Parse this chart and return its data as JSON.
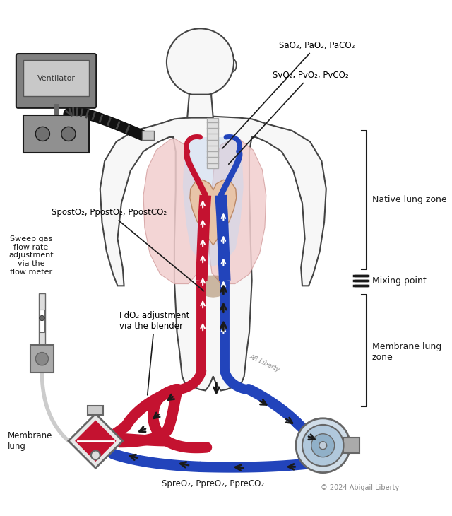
{
  "bg_color": "#ffffff",
  "body_fill": "#f7f7f7",
  "body_edge": "#444444",
  "lung_color": "#f2cece",
  "lung_edge": "#d4a0a0",
  "heart_fill": "#e8c4a8",
  "red_tube": "#c41230",
  "blue_tube": "#2244bb",
  "blue_light": "#a8c4e8",
  "dark": "#1a1a1a",
  "gray_med": "#999999",
  "gray_light": "#bbbbbb",
  "gray_dark": "#666666",
  "white": "#ffffff",
  "label_SaO2": "SaO₂, PaO₂, PaCO₂",
  "label_SvO2": "S̅vO₂, P̅vO₂, P̅vCO₂",
  "label_SpostO2": "SpostO₂, PpostO₂, PpostCO₂",
  "label_sweep": "Sweep gas\nflow rate\nadjustment\nvia the\nflow meter",
  "label_FdO2": "FdO₂ adjustment\nvia the blender",
  "label_native": "Native lung zone",
  "label_mixing": "Mixing point",
  "label_membrane_zone": "Membrane lung\nzone",
  "label_membrane_lung": "Membrane\nlung",
  "label_SpreO2": "SpreO₂, PpreO₂, PpreCO₂",
  "label_ventilator": "Ventilator",
  "label_copyright": "© 2024 Abigail Liberty",
  "label_AR": "AR Liberty"
}
